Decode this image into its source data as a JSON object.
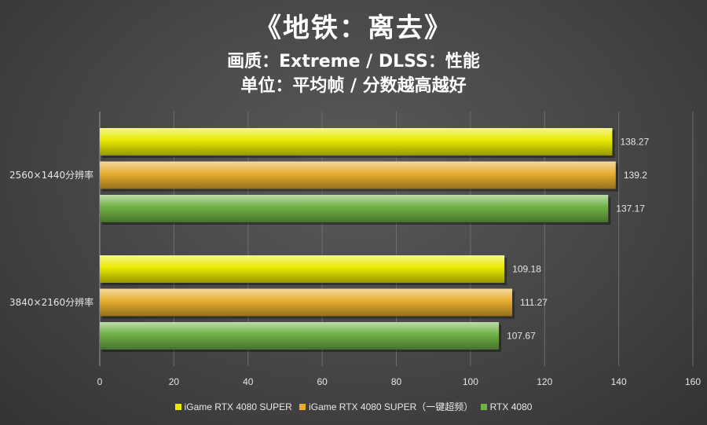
{
  "title": "《地铁：离去》",
  "subtitle1": "画质：Extreme / DLSS：性能",
  "subtitle2": "单位：平均帧 / 分数越高越好",
  "chart_data": {
    "type": "bar",
    "orientation": "horizontal",
    "categories": [
      "2560×1440分辨率",
      "3840×2160分辨率"
    ],
    "series": [
      {
        "name": "iGame RTX 4080 SUPER",
        "color": "#e8e800",
        "values": [
          138.27,
          109.18
        ]
      },
      {
        "name": "iGame RTX 4080 SUPER（一键超频）",
        "color": "#e6ad2e",
        "values": [
          139.2,
          111.27
        ]
      },
      {
        "name": "RTX 4080",
        "color": "#6fb045",
        "values": [
          137.17,
          107.67
        ]
      }
    ],
    "xlim": [
      0,
      160
    ],
    "xticks": [
      "0",
      "20",
      "40",
      "60",
      "80",
      "100",
      "120",
      "140",
      "160"
    ],
    "grid": true,
    "legend": "bottom"
  }
}
